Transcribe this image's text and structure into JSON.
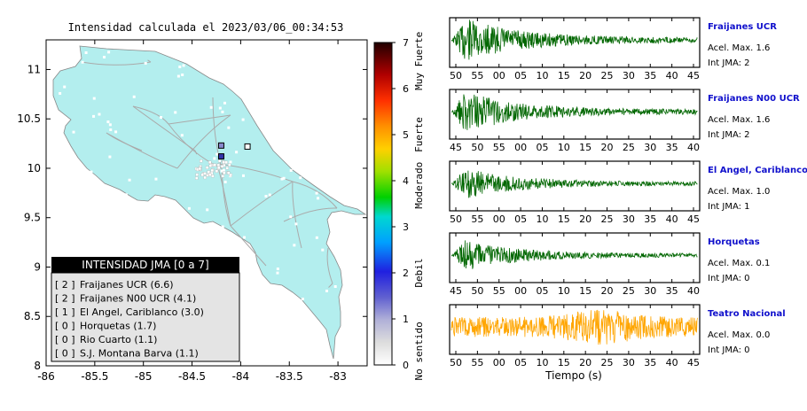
{
  "title": "Intensidad calculada el 2023/03/06_00:34:53",
  "map": {
    "x_ticks": [
      "-86",
      "-85.5",
      "-85",
      "-84.5",
      "-84",
      "-83.5",
      "-83"
    ],
    "y_ticks": [
      "11",
      "10.5",
      "10",
      "9.5",
      "9",
      "8.5",
      "8"
    ],
    "xlim": [
      -86,
      -82.7
    ],
    "ylim": [
      8,
      11.3
    ],
    "land_color": "#b3eeee",
    "stations": [
      {
        "lon": -84.2,
        "lat": 10.23,
        "color": "#8888cc"
      },
      {
        "lon": -84.2,
        "lat": 10.12,
        "color": "#3333aa"
      },
      {
        "lon": -83.93,
        "lat": 10.22,
        "color": "#ffffff"
      }
    ]
  },
  "legend": {
    "title": "INTENSIDAD JMA [0 a 7]",
    "items": [
      {
        "level": "[ 2 ]",
        "text": "Fraijanes UCR (6.6)"
      },
      {
        "level": "[ 2 ]",
        "text": "Fraijanes N00 UCR (4.1)"
      },
      {
        "level": "[ 1 ]",
        "text": "El Angel, Cariblanco (3.0)"
      },
      {
        "level": "[ 0 ]",
        "text": "Horquetas (1.7)"
      },
      {
        "level": "[ 0 ]",
        "text": "Rio Cuarto (1.1)"
      },
      {
        "level": "[ 0 ]",
        "text": "S.J. Montana Barva (1.1)"
      }
    ]
  },
  "colorbar": {
    "ticks": [
      "0",
      "1",
      "2",
      "3",
      "4",
      "5",
      "6",
      "7"
    ],
    "range": [
      0,
      7
    ],
    "labels": [
      "No sentido",
      "Debil",
      "Moderado",
      "Fuerte",
      "Muy Fuerte"
    ],
    "label_levels": [
      0.3,
      2,
      3.9,
      5,
      6.6
    ]
  },
  "chart_data": {
    "type": "line",
    "xlabel": "Tiempo (s)",
    "panels": [
      {
        "name": "Fraijanes UCR",
        "acel": "Acel. Max. 1.6",
        "int": "Int JMA: 2",
        "color": "#006600",
        "ticks": [
          "50",
          "55",
          "00",
          "05",
          "10",
          "15",
          "20",
          "25",
          "30",
          "35",
          "40",
          "45"
        ],
        "amp": 0.85
      },
      {
        "name": "Fraijanes N00 UCR",
        "acel": "Acel. Max. 1.6",
        "int": "Int JMA: 2",
        "color": "#006600",
        "ticks": [
          "45",
          "50",
          "55",
          "00",
          "05",
          "10",
          "15",
          "20",
          "25",
          "30",
          "35",
          "40"
        ],
        "amp": 0.8
      },
      {
        "name": "El Angel, Cariblanco",
        "acel": "Acel. Max. 1.0",
        "int": "Int JMA: 1",
        "color": "#006600",
        "ticks": [
          "50",
          "55",
          "00",
          "05",
          "10",
          "15",
          "20",
          "25",
          "30",
          "35",
          "40",
          "45"
        ],
        "amp": 0.6
      },
      {
        "name": "Horquetas",
        "acel": "Acel. Max. 0.1",
        "int": "Int JMA: 0",
        "color": "#006600",
        "ticks": [
          "45",
          "50",
          "55",
          "00",
          "05",
          "10",
          "15",
          "20",
          "25",
          "30",
          "35",
          "40"
        ],
        "amp": 0.6
      },
      {
        "name": "Teatro Nacional",
        "acel": "Acel. Max. 0.0",
        "int": "Int JMA: 0",
        "color": "#ffa500",
        "ticks": [
          "50",
          "55",
          "00",
          "05",
          "10",
          "15",
          "20",
          "25",
          "30",
          "35",
          "40",
          "45"
        ],
        "amp": 0.9
      }
    ]
  }
}
